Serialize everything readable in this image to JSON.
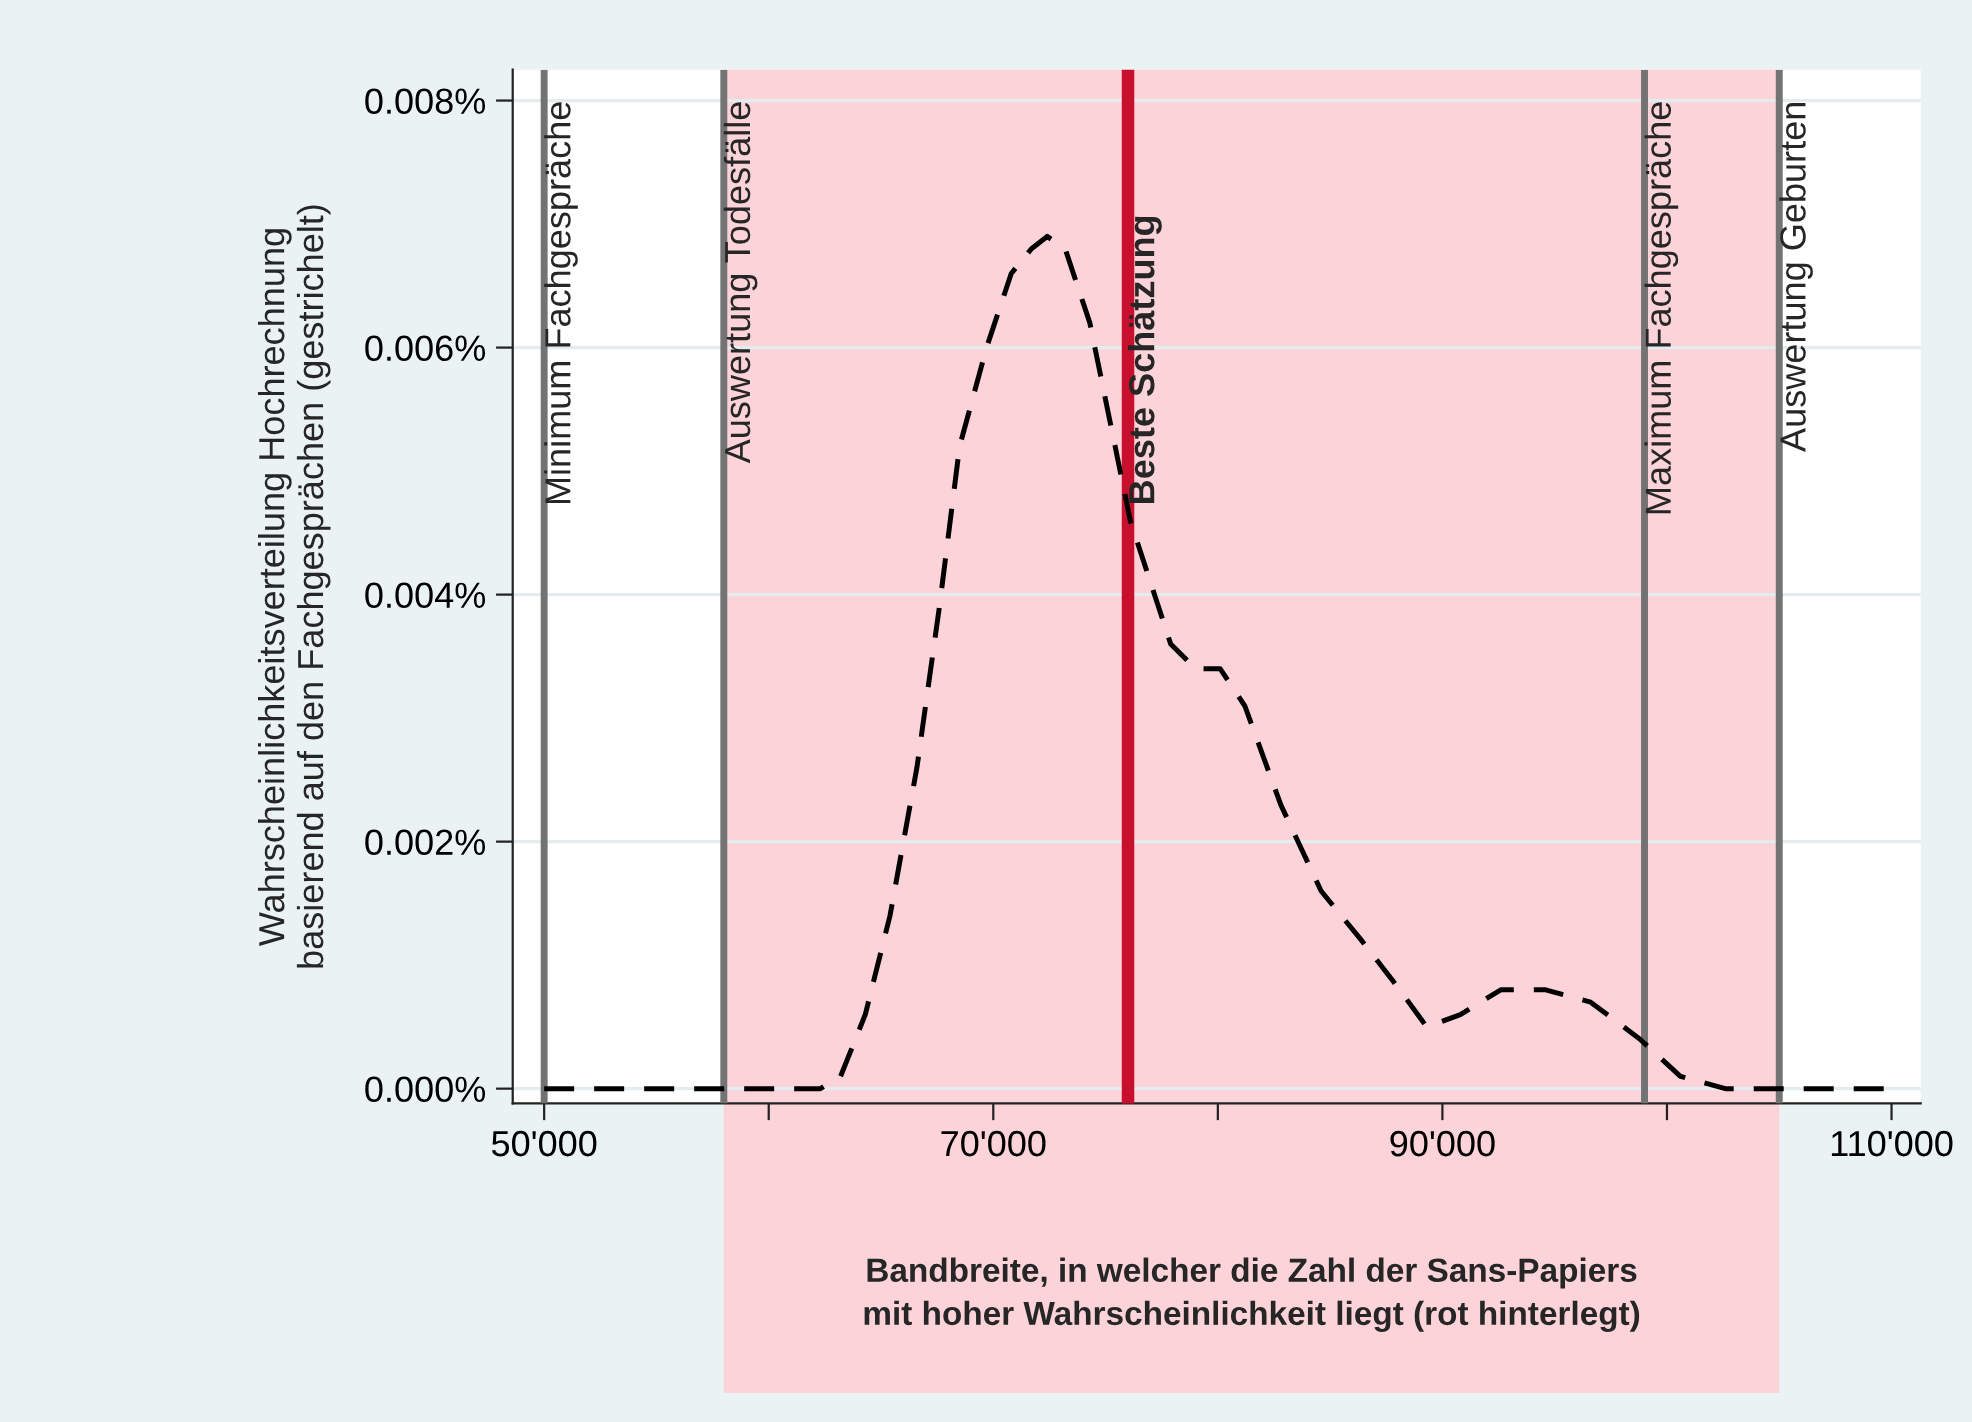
{
  "chart_data": {
    "type": "line",
    "ylabel": "Wahrscheinlichkeitsverteilung Hochrechnung\nbasierend auf den Fachgesprächen (gestrichelt)",
    "series": [
      {
        "color": "#000000",
        "line_style": "dashed",
        "x": [
          50000,
          62300,
          63200,
          64300,
          65400,
          66600,
          67600,
          68500,
          69700,
          70800,
          71700,
          72400,
          73200,
          74300,
          75200,
          76100,
          77000,
          77900,
          79000,
          80100,
          81200,
          82800,
          84600,
          86400,
          88100,
          89300,
          90800,
          92600,
          94600,
          96600,
          98800,
          100600,
          102600,
          110000
        ],
        "values": [
          0,
          0,
          0.0001,
          0.0006,
          0.0014,
          0.0026,
          0.0039,
          0.0052,
          0.006,
          0.0066,
          0.0068,
          0.0069,
          0.0068,
          0.0062,
          0.0054,
          0.0046,
          0.0041,
          0.0036,
          0.0034,
          0.0034,
          0.0031,
          0.0023,
          0.0016,
          0.0012,
          0.0008,
          0.0005,
          0.0006,
          0.0008,
          0.0008,
          0.0007,
          0.0004,
          0.0001,
          0,
          0
        ]
      }
    ],
    "xlim": [
      48600,
      111300
    ],
    "xticks": [
      {
        "value": 50000,
        "label": "50'000"
      },
      {
        "value": 60000,
        "label": null
      },
      {
        "value": 70000,
        "label": "70'000"
      },
      {
        "value": 80000,
        "label": null
      },
      {
        "value": 90000,
        "label": "90'000"
      },
      {
        "value": 100000,
        "label": null
      },
      {
        "value": 110000,
        "label": "110'000"
      }
    ],
    "ylim": [
      -0.00012,
      0.00825
    ],
    "yticks": [
      {
        "value": 0,
        "label": "0.000%"
      },
      {
        "value": 0.002,
        "label": "0.002%"
      },
      {
        "value": 0.004,
        "label": "0.004%"
      },
      {
        "value": 0.006,
        "label": "0.006%"
      },
      {
        "value": 0.008,
        "label": "0.008%"
      }
    ],
    "grid": "y",
    "bands": [
      {
        "axis": "x",
        "from": 58000,
        "to": 105000,
        "label": "Bandbreite, in welcher die Zahl der Sans-Papiers\nmit hoher Wahrscheinlichkeit liegt (rot hinterlegt)",
        "color": "#fbd3d8"
      }
    ],
    "ref_lines": [
      {
        "axis": "x",
        "value": 50000,
        "label": "Minimum Fachgespräche",
        "color": "#737373"
      },
      {
        "axis": "x",
        "value": 58000,
        "label": "Auswertung Todesfälle",
        "color": "#737373"
      },
      {
        "axis": "x",
        "value": 76000,
        "label": "Beste Schätzung",
        "color": "#c8102e"
      },
      {
        "axis": "x",
        "value": 99000,
        "label": "Maximum Fachgespräche",
        "color": "#737373"
      },
      {
        "axis": "x",
        "value": 105000,
        "label": "Auswertung Geburten",
        "color": "#737373"
      }
    ]
  }
}
